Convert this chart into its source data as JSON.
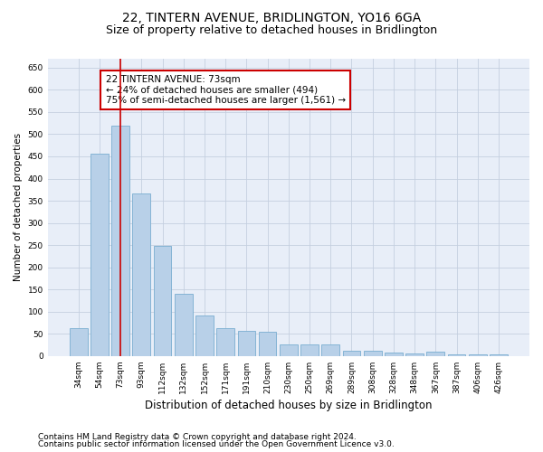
{
  "title": "22, TINTERN AVENUE, BRIDLINGTON, YO16 6GA",
  "subtitle": "Size of property relative to detached houses in Bridlington",
  "xlabel": "Distribution of detached houses by size in Bridlington",
  "ylabel": "Number of detached properties",
  "categories": [
    "34sqm",
    "54sqm",
    "73sqm",
    "93sqm",
    "112sqm",
    "132sqm",
    "152sqm",
    "171sqm",
    "191sqm",
    "210sqm",
    "230sqm",
    "250sqm",
    "269sqm",
    "289sqm",
    "308sqm",
    "328sqm",
    "348sqm",
    "367sqm",
    "387sqm",
    "406sqm",
    "426sqm"
  ],
  "values": [
    62,
    456,
    520,
    366,
    248,
    140,
    91,
    62,
    57,
    54,
    26,
    26,
    26,
    11,
    12,
    7,
    5,
    9,
    3,
    4,
    3
  ],
  "bar_color": "#b8d0e8",
  "bar_edge_color": "#7aaed0",
  "red_line_index": 2,
  "annotation_title": "22 TINTERN AVENUE: 73sqm",
  "annotation_line1": "← 24% of detached houses are smaller (494)",
  "annotation_line2": "75% of semi-detached houses are larger (1,561) →",
  "annotation_box_color": "#ffffff",
  "annotation_box_edge": "#cc0000",
  "red_line_color": "#cc0000",
  "ylim": [
    0,
    670
  ],
  "yticks": [
    0,
    50,
    100,
    150,
    200,
    250,
    300,
    350,
    400,
    450,
    500,
    550,
    600,
    650
  ],
  "background_color": "#e8eef8",
  "grid_color": "#c5cfe0",
  "footer_line1": "Contains HM Land Registry data © Crown copyright and database right 2024.",
  "footer_line2": "Contains public sector information licensed under the Open Government Licence v3.0.",
  "title_fontsize": 10,
  "subtitle_fontsize": 9,
  "xlabel_fontsize": 8.5,
  "ylabel_fontsize": 7.5,
  "tick_fontsize": 6.5,
  "annotation_fontsize": 7.5,
  "footer_fontsize": 6.5
}
